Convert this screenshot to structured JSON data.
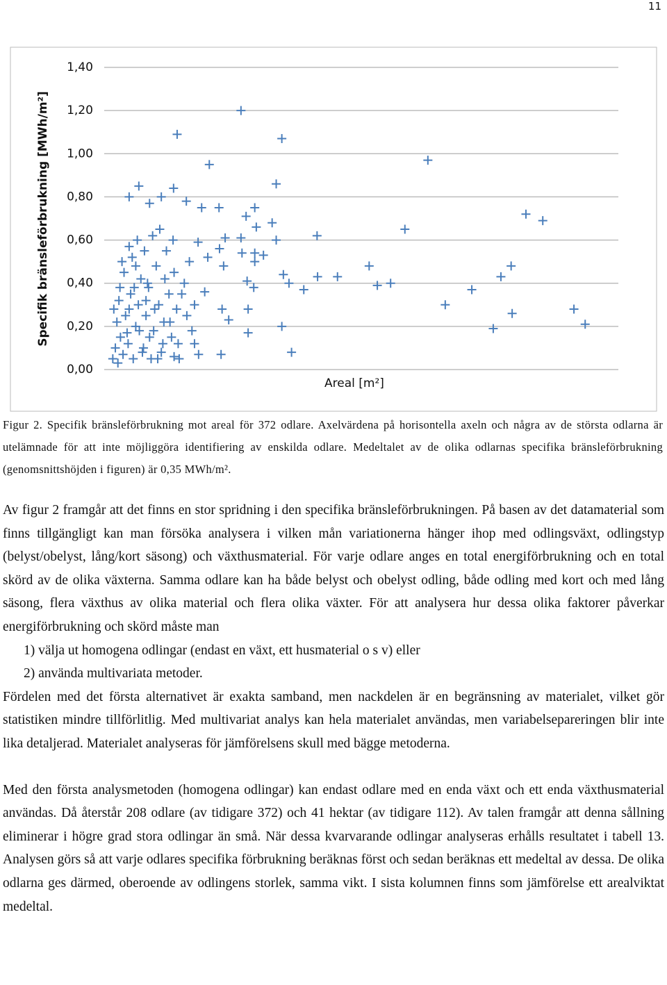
{
  "page_number": "11",
  "chart_data": {
    "type": "scatter",
    "ylabel": "Specifik bränsleförbrukning [MWh/m²]",
    "xlabel": "Areal [m²]",
    "color": "#4a7ebb",
    "grid": true,
    "ylim": [
      0,
      1.4
    ],
    "xlim": [
      0,
      100
    ],
    "yticks": [
      {
        "value": 0,
        "label": "0,00"
      },
      {
        "value": 0.2,
        "label": "0,20"
      },
      {
        "value": 0.4,
        "label": "0,40"
      },
      {
        "value": 0.6,
        "label": "0,60"
      },
      {
        "value": 0.8,
        "label": "0,80"
      },
      {
        "value": 1.0,
        "label": "1,00"
      },
      {
        "value": 1.2,
        "label": "1,20"
      },
      {
        "value": 1.4,
        "label": "1,40"
      }
    ],
    "x": [
      26.1,
      13.6,
      34.1,
      19.9,
      62.7,
      33.0,
      6.1,
      12.9,
      4.2,
      10.5,
      15.4,
      8.2,
      18.4,
      21.8,
      28.8,
      81.9,
      85.2,
      58.2,
      27.1,
      32.2,
      29.1,
      41.0,
      26.1,
      33.0,
      23.0,
      17.7,
      4.2,
      21.9,
      26.3,
      28.8,
      30.5,
      19.6,
      22.7,
      28.8,
      51.2,
      79.0,
      34.4,
      41.1,
      45.0,
      77.0,
      35.5,
      27.3,
      28.6,
      38.4,
      52.8,
      55.4,
      71.3,
      19.0,
      66.1,
      91.3,
      27.5,
      22.4,
      79.2,
      23.7,
      34.1,
      75.5,
      93.5,
      27.5,
      36.0,
      22.2,
      17.8,
      13.0,
      17.0,
      1,
      1.5,
      2,
      2.5,
      3,
      1.8,
      2.2,
      3.5,
      4,
      4.5,
      5,
      5.5,
      6,
      6.5,
      7,
      7.5,
      8,
      8.5,
      9,
      9.5,
      10,
      10.5,
      11,
      11.5,
      12,
      12.5,
      13,
      13.5,
      14,
      3.2,
      4.8,
      5.8,
      7.2,
      8.8,
      10.2,
      12.8,
      15,
      15.5,
      16,
      17,
      2.8,
      6.2,
      7.8,
      9.2,
      11.2,
      4.2,
      5.2,
      3.8,
      8.2,
      10.8,
      6.8,
      9.8,
      12.2,
      14.5,
      13.8,
      16.5,
      2.4,
      1.2,
      5.5,
      7.5
    ],
    "values": [
      1.2,
      1.09,
      1.07,
      0.95,
      0.97,
      0.86,
      0.85,
      0.84,
      0.8,
      0.8,
      0.78,
      0.77,
      0.75,
      0.75,
      0.75,
      0.72,
      0.69,
      0.65,
      0.71,
      0.68,
      0.66,
      0.62,
      0.61,
      0.6,
      0.61,
      0.59,
      0.57,
      0.56,
      0.54,
      0.54,
      0.53,
      0.52,
      0.48,
      0.5,
      0.48,
      0.48,
      0.44,
      0.43,
      0.43,
      0.43,
      0.4,
      0.41,
      0.38,
      0.37,
      0.39,
      0.4,
      0.37,
      0.36,
      0.3,
      0.28,
      0.28,
      0.28,
      0.26,
      0.23,
      0.2,
      0.19,
      0.21,
      0.17,
      0.08,
      0.07,
      0.07,
      0.06,
      0.12,
      0.05,
      0.1,
      0.03,
      0.15,
      0.07,
      0.22,
      0.32,
      0.25,
      0.12,
      0.35,
      0.05,
      0.2,
      0.3,
      0.42,
      0.1,
      0.25,
      0.38,
      0.05,
      0.18,
      0.48,
      0.3,
      0.08,
      0.22,
      0.55,
      0.35,
      0.15,
      0.45,
      0.28,
      0.05,
      0.45,
      0.52,
      0.6,
      0.55,
      0.62,
      0.65,
      0.6,
      0.4,
      0.25,
      0.5,
      0.3,
      0.5,
      0.18,
      0.4,
      0.28,
      0.42,
      0.28,
      0.38,
      0.17,
      0.15,
      0.12,
      0.08,
      0.05,
      0.22,
      0.35,
      0.12,
      0.18,
      0.38,
      0.28,
      0.48,
      0.32
    ]
  },
  "caption": "Figur 2. Specifik bränsleförbrukning mot areal för 372 odlare. Axelvärdena på horisontella axeln och några av de största odlarna är utelämnade för att inte möjliggöra identifiering av enskilda odlare. Medeltalet av de olika odlarnas specifika bränsleförbrukning (genomsnittshöjden i figuren) är 0,35 MWh/m².",
  "paragraphs": [
    "Av figur 2 framgår att det finns en stor spridning i den specifika bränsleförbrukningen. På basen av det datamaterial som finns tillgängligt kan man försöka analysera i vilken mån variationerna hänger ihop med odlingsväxt, odlingstyp (belyst/obelyst, lång/kort säsong) och växthusmaterial. För varje odlare anges en total energiförbrukning och en total skörd av de olika växterna. Samma odlare kan ha både belyst och obelyst odling, både odling med kort och med lång säsong, flera växthus av olika material och flera olika växter. För att analysera hur dessa olika faktorer påverkar energiförbrukning och skörd måste man",
    "1) välja ut homogena odlingar (endast en växt, ett husmaterial o s v) eller",
    "2) använda multivariata metoder.",
    "Fördelen med det första alternativet är exakta samband, men nackdelen är en begränsning av materialet, vilket gör statistiken mindre tillförlitlig. Med multivariat analys kan hela materialet användas, men variabelsepareringen blir inte lika detaljerad. Materialet analyseras för jämförelsens skull med bägge metoderna.",
    "Med den första analysmetoden (homogena odlingar) kan endast odlare med en enda växt och ett enda växthusmaterial användas. Då återstår 208 odlare (av tidigare 372) och 41 hektar (av tidigare 112). Av talen framgår att denna sållning eliminerar i högre grad stora odlingar än små. När dessa kvarvarande odlingar analyseras erhålls resultatet i tabell 13. Analysen görs så att varje odlares specifika förbrukning beräknas först och sedan beräknas ett medeltal av dessa. De olika odlarna ges därmed, oberoende av odlingens storlek, samma vikt. I sista kolumnen finns som jämförelse ett arealviktat medeltal."
  ]
}
